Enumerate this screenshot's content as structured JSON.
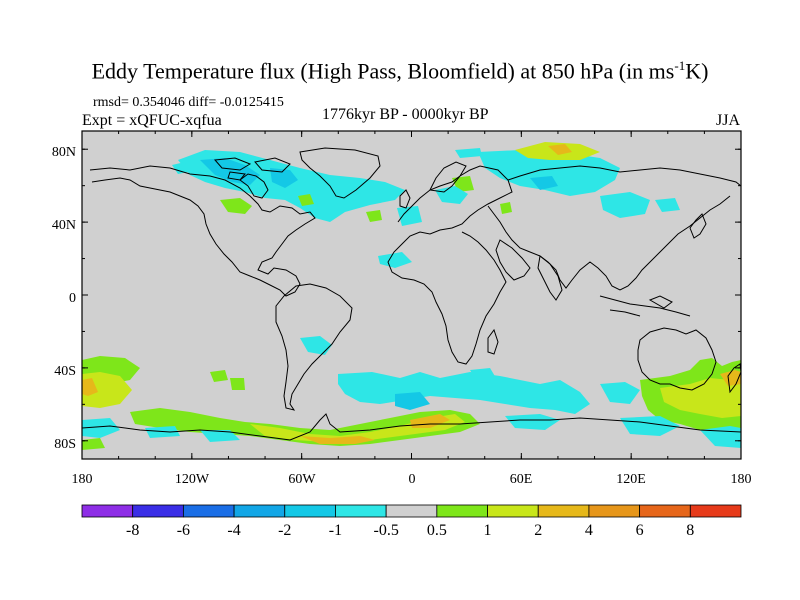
{
  "title": {
    "main": "Eddy Temperature flux (High Pass, Bloomfield) at 850 hPa (in ms",
    "sup": "-1",
    "end": "K)"
  },
  "stats": "rmsd= 0.354046 diff= -0.0125415",
  "experiment": "Expt = xQFUC-xqfua",
  "period": "1776kyr BP - 0000kyr BP",
  "season": "JJA",
  "map": {
    "projection": "cylindrical equidistant",
    "lon_range": [
      -180,
      180
    ],
    "lat_range": [
      -90,
      90
    ],
    "background_color": "#d0d0d0",
    "x_ticks": [
      "180",
      "120W",
      "60W",
      "0",
      "60E",
      "120E",
      "180"
    ],
    "y_ticks": [
      "80N",
      "40N",
      "0",
      "40S",
      "80S"
    ]
  },
  "colorbar": {
    "labels": [
      "-8",
      "-6",
      "-4",
      "-2",
      "-1",
      "-0.5",
      "0.5",
      "1",
      "2",
      "4",
      "6",
      "8"
    ],
    "colors": [
      "#8e2ee6",
      "#3a2ee6",
      "#1a6ee6",
      "#12a6e6",
      "#14c8e6",
      "#2ee6e6",
      "#d0d0d0",
      "#7ee61a",
      "#c8e61a",
      "#e6b81a",
      "#e6961a",
      "#e6661a",
      "#e63a1a"
    ]
  }
}
